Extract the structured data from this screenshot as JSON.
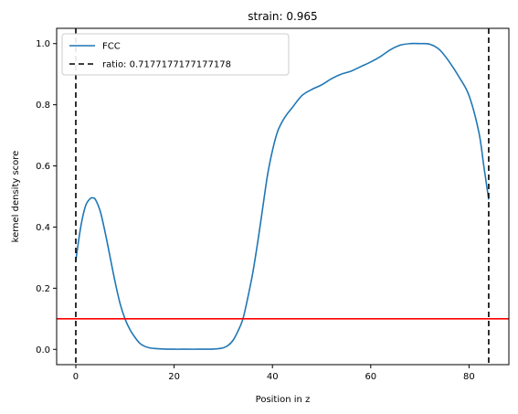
{
  "chart_data": {
    "type": "line",
    "title": "strain: 0.965",
    "xlabel": "Position in z",
    "ylabel": "kernel density score",
    "xlim": [
      -3.9,
      88.1
    ],
    "ylim": [
      -0.05,
      1.05
    ],
    "xticks": [
      0,
      20,
      40,
      60,
      80
    ],
    "yticks": [
      0.0,
      0.2,
      0.4,
      0.6,
      0.8,
      1.0
    ],
    "xtick_labels": [
      "0",
      "20",
      "40",
      "60",
      "80"
    ],
    "ytick_labels": [
      "0.0",
      "0.2",
      "0.4",
      "0.6",
      "0.8",
      "1.0"
    ],
    "grid": false,
    "legend_position": "upper-left",
    "series": [
      {
        "name": "FCC",
        "color": "#1f77b4",
        "style": "solid",
        "x": [
          0,
          1,
          2,
          3,
          3.5,
          4,
          5,
          6,
          7,
          8,
          9,
          10,
          11,
          12,
          13,
          14,
          15,
          16,
          18,
          20,
          22,
          25,
          28,
          30,
          31,
          32,
          33,
          34,
          35,
          36,
          37,
          38,
          39,
          40,
          41,
          42,
          43,
          44,
          46,
          48,
          50,
          52,
          54,
          56,
          58,
          60,
          62,
          64,
          66,
          68,
          70,
          72,
          74,
          76,
          78,
          80,
          82,
          83,
          84
        ],
        "y": [
          0.29,
          0.4,
          0.47,
          0.494,
          0.495,
          0.49,
          0.45,
          0.38,
          0.3,
          0.22,
          0.15,
          0.1,
          0.065,
          0.04,
          0.02,
          0.01,
          0.005,
          0.003,
          0.001,
          0.0005,
          0.0005,
          0.0005,
          0.001,
          0.005,
          0.013,
          0.03,
          0.06,
          0.1,
          0.17,
          0.25,
          0.35,
          0.46,
          0.57,
          0.65,
          0.71,
          0.745,
          0.77,
          0.79,
          0.83,
          0.85,
          0.865,
          0.885,
          0.9,
          0.91,
          0.925,
          0.94,
          0.958,
          0.98,
          0.995,
          1.0,
          1.0,
          0.998,
          0.98,
          0.94,
          0.89,
          0.83,
          0.71,
          0.6,
          0.49
        ]
      }
    ],
    "vlines": [
      {
        "name": "ratio: 0.7177177177177178",
        "x": 0,
        "color": "#000000",
        "style": "dashed"
      },
      {
        "x": 84,
        "color": "#000000",
        "style": "dashed"
      }
    ],
    "hlines": [
      {
        "y": 0.1,
        "color": "#ff0000",
        "style": "solid"
      }
    ],
    "legend": [
      {
        "label": "FCC",
        "color": "#1f77b4",
        "style": "solid"
      },
      {
        "label": "ratio: 0.7177177177177178",
        "color": "#000000",
        "style": "dashed"
      }
    ]
  }
}
